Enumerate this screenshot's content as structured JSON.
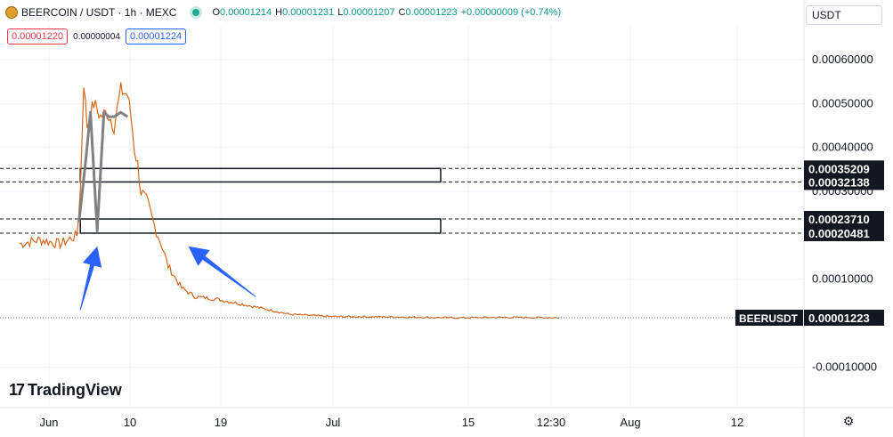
{
  "legend": {
    "symbol": "BEERCOIN / USDT · 1h · MEXC",
    "ohlc": [
      {
        "k": "O",
        "v": "0.00001214"
      },
      {
        "k": "H",
        "v": "0.00001231"
      },
      {
        "k": "L",
        "v": "0.00001207"
      },
      {
        "k": "C",
        "v": "0.00001223"
      },
      {
        "k": "",
        "v": "+0.00000009 (+0.74%)"
      }
    ],
    "sell_price": "0.00001220",
    "spread": "0.00000004",
    "buy_price": "0.00001224"
  },
  "currency_button": "USDT",
  "watermark": "TradingView",
  "symbol_tag": "BEERUSDT",
  "colors": {
    "up": "#089981",
    "down": "#f23645",
    "candle": "#d4661a",
    "annotation": "#2962ff",
    "gray_path": "#808080",
    "axis_text": "#131722"
  },
  "chart_data": {
    "type": "line",
    "ylim": [
      -0.00012,
      0.00067
    ],
    "y_tick_labels": [
      "0.00060000",
      "0.00050000",
      "0.00040000",
      "0.00030000",
      "0.00010000",
      "-0.00010000"
    ],
    "y_tick_values": [
      0.0006,
      0.0005,
      0.0004,
      0.0003,
      0.0001,
      -0.0001
    ],
    "x_tick_labels": [
      "Jun",
      "10",
      "19",
      "Jul",
      "15",
      "12:30",
      "Aug",
      "12"
    ],
    "x_tick_index": [
      55,
      146,
      248,
      374,
      526,
      619,
      708,
      828
    ],
    "price_series": [
      [
        0,
        0.00018
      ],
      [
        0.03,
        0.00019
      ],
      [
        0.06,
        0.00018
      ],
      [
        0.085,
        0.0002
      ],
      [
        0.09,
        0.0003
      ],
      [
        0.095,
        0.00055
      ],
      [
        0.1,
        0.00045
      ],
      [
        0.11,
        0.0005
      ],
      [
        0.12,
        0.00047
      ],
      [
        0.13,
        0.00048
      ],
      [
        0.14,
        0.00045
      ],
      [
        0.15,
        0.00053
      ],
      [
        0.16,
        0.00052
      ],
      [
        0.165,
        0.00047
      ],
      [
        0.17,
        0.0004
      ],
      [
        0.175,
        0.00036
      ],
      [
        0.18,
        0.0003
      ],
      [
        0.19,
        0.00027
      ],
      [
        0.2,
        0.00022
      ],
      [
        0.21,
        0.00018
      ],
      [
        0.22,
        0.00013
      ],
      [
        0.24,
        8e-05
      ],
      [
        0.26,
        6e-05
      ],
      [
        0.29,
        5.5e-05
      ],
      [
        0.34,
        4e-05
      ],
      [
        0.4,
        2e-05
      ],
      [
        0.46,
        1.5e-05
      ],
      [
        0.55,
        1.4e-05
      ],
      [
        0.65,
        1.2e-05
      ],
      [
        0.71,
        1.3e-05
      ],
      [
        0.8,
        1.223e-05
      ]
    ],
    "price_series_time": "fraction of the plotted time range",
    "zones": [
      {
        "top": 0.00035209,
        "bottom": 0.00032138
      },
      {
        "top": 0.0002371,
        "bottom": 0.00020481
      }
    ],
    "level_labels": [
      "0.00035209",
      "0.00032138",
      "0.00023710",
      "0.00020481"
    ],
    "current_price": "0.00001223",
    "gray_w_path": [
      [
        0.088,
        0.00023
      ],
      [
        0.098,
        0.00037
      ],
      [
        0.105,
        0.00048
      ],
      [
        0.115,
        0.00021
      ],
      [
        0.125,
        0.00048
      ],
      [
        0.132,
        0.00047
      ],
      [
        0.14,
        0.00047
      ],
      [
        0.15,
        0.00048
      ],
      [
        0.16,
        0.00047
      ]
    ],
    "blue_arrows": [
      {
        "from": [
          0.09,
          3e-05
        ],
        "to": [
          0.115,
          0.000175
        ]
      },
      {
        "from": [
          0.35,
          6e-05
        ],
        "to": [
          0.25,
          0.000175
        ]
      }
    ]
  }
}
